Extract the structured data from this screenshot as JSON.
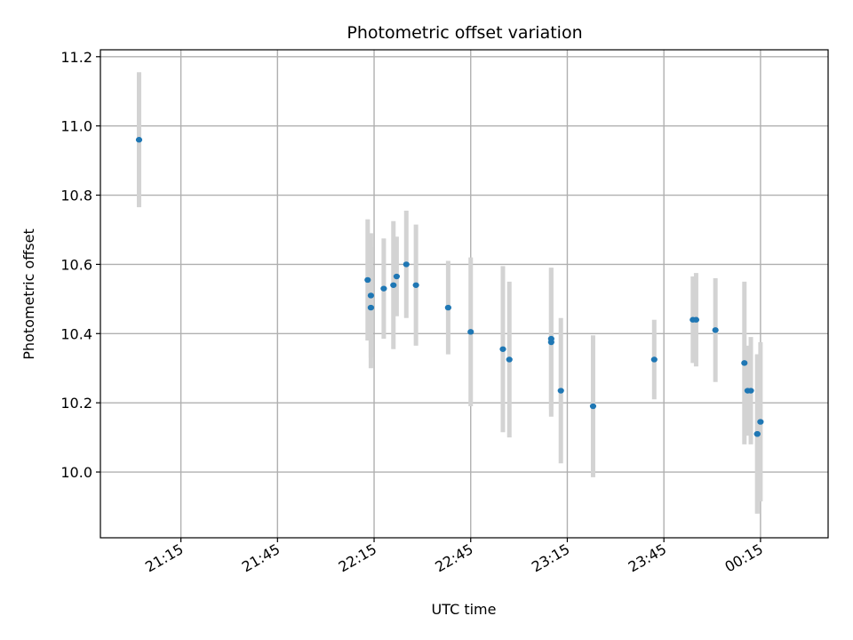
{
  "chart_data": {
    "type": "scatter",
    "title": "Photometric offset variation",
    "xlabel": "UTC time",
    "ylabel": "Photometric offset",
    "grid": true,
    "x_is_time": true,
    "xlim": [
      "20:50",
      "00:36"
    ],
    "ylim": [
      9.81,
      11.22
    ],
    "xticks": [
      "21:15",
      "21:45",
      "22:15",
      "22:45",
      "23:15",
      "23:45",
      "00:15"
    ],
    "yticks": [
      10.0,
      10.2,
      10.4,
      10.6,
      10.8,
      11.0,
      11.2
    ],
    "ytick_labels": [
      "10.0",
      "10.2",
      "10.4",
      "10.6",
      "10.8",
      "11.0",
      "11.2"
    ],
    "marker_color": "#1f77b4",
    "errorbar_color": "#d3d3d3",
    "points": [
      {
        "t": "21:02",
        "y": 10.96,
        "yerr": 0.195
      },
      {
        "t": "22:13",
        "y": 10.555,
        "yerr": 0.175
      },
      {
        "t": "22:14",
        "y": 10.475,
        "yerr": 0.175
      },
      {
        "t": "22:14",
        "y": 10.51,
        "yerr": 0.18
      },
      {
        "t": "22:18",
        "y": 10.53,
        "yerr": 0.145
      },
      {
        "t": "22:21",
        "y": 10.54,
        "yerr": 0.185
      },
      {
        "t": "22:22",
        "y": 10.565,
        "yerr": 0.115
      },
      {
        "t": "22:25",
        "y": 10.6,
        "yerr": 0.155
      },
      {
        "t": "22:28",
        "y": 10.54,
        "yerr": 0.175
      },
      {
        "t": "22:38",
        "y": 10.475,
        "yerr": 0.135
      },
      {
        "t": "22:45",
        "y": 10.405,
        "yerr": 0.215
      },
      {
        "t": "22:55",
        "y": 10.355,
        "yerr": 0.24
      },
      {
        "t": "22:57",
        "y": 10.325,
        "yerr": 0.225
      },
      {
        "t": "23:10",
        "y": 10.375,
        "yerr": 0.215
      },
      {
        "t": "23:10",
        "y": 10.385,
        "yerr": 0.205
      },
      {
        "t": "23:13",
        "y": 10.235,
        "yerr": 0.21
      },
      {
        "t": "23:23",
        "y": 10.19,
        "yerr": 0.205
      },
      {
        "t": "23:42",
        "y": 10.325,
        "yerr": 0.115
      },
      {
        "t": "23:54",
        "y": 10.44,
        "yerr": 0.125
      },
      {
        "t": "23:55",
        "y": 10.44,
        "yerr": 0.135
      },
      {
        "t": "00:01",
        "y": 10.41,
        "yerr": 0.15
      },
      {
        "t": "00:10",
        "y": 10.315,
        "yerr": 0.235
      },
      {
        "t": "00:11",
        "y": 10.235,
        "yerr": 0.13
      },
      {
        "t": "00:12",
        "y": 10.235,
        "yerr": 0.155
      },
      {
        "t": "00:14",
        "y": 10.11,
        "yerr": 0.23
      },
      {
        "t": "00:14",
        "y": 10.11,
        "yerr": 0.23
      },
      {
        "t": "00:15",
        "y": 10.145,
        "yerr": 0.23
      }
    ]
  }
}
